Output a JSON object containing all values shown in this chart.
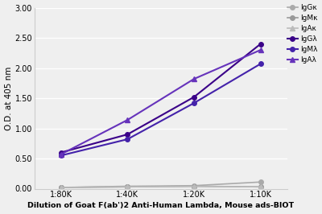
{
  "x_positions": [
    0,
    1,
    2,
    3
  ],
  "x_tick_labels": [
    "1:80K",
    "1:40K",
    "1:20K",
    "1:10K"
  ],
  "series": [
    {
      "label": "IgGκ",
      "color": "#aaaaaa",
      "marker": "o",
      "markersize": 4,
      "linewidth": 1.2,
      "values": [
        0.02,
        0.04,
        0.05,
        0.11
      ]
    },
    {
      "label": "IgMκ",
      "color": "#999999",
      "marker": "o",
      "markersize": 4,
      "linewidth": 1.2,
      "values": [
        0.02,
        0.03,
        0.04,
        0.03
      ]
    },
    {
      "label": "IgAκ",
      "color": "#bbbbbb",
      "marker": "^",
      "markersize": 4,
      "linewidth": 1.2,
      "values": [
        0.02,
        0.03,
        0.04,
        0.03
      ]
    },
    {
      "label": "IgGλ",
      "color": "#3a0088",
      "marker": "o",
      "markersize": 4,
      "linewidth": 1.5,
      "values": [
        0.6,
        0.9,
        1.52,
        2.4
      ]
    },
    {
      "label": "IgMλ",
      "color": "#4422aa",
      "marker": "o",
      "markersize": 4,
      "linewidth": 1.5,
      "values": [
        0.55,
        0.82,
        1.42,
        2.07
      ]
    },
    {
      "label": "IgAλ",
      "color": "#6633bb",
      "marker": "^",
      "markersize": 4,
      "linewidth": 1.5,
      "values": [
        0.57,
        1.14,
        1.82,
        2.3
      ]
    }
  ],
  "ylabel": "O.D. at 405 nm",
  "xlabel": "Dilution of Goat F(ab')2 Anti-Human Lambda, Mouse ads-BIOT",
  "ylim": [
    0.0,
    3.0
  ],
  "yticks": [
    0.0,
    0.5,
    1.0,
    1.5,
    2.0,
    2.5,
    3.0
  ],
  "background_color": "#efefef",
  "plot_bg_color": "#efefef",
  "legend_fontsize": 6.5,
  "xlabel_fontsize": 6.8,
  "ylabel_fontsize": 7.5,
  "tick_fontsize": 7
}
